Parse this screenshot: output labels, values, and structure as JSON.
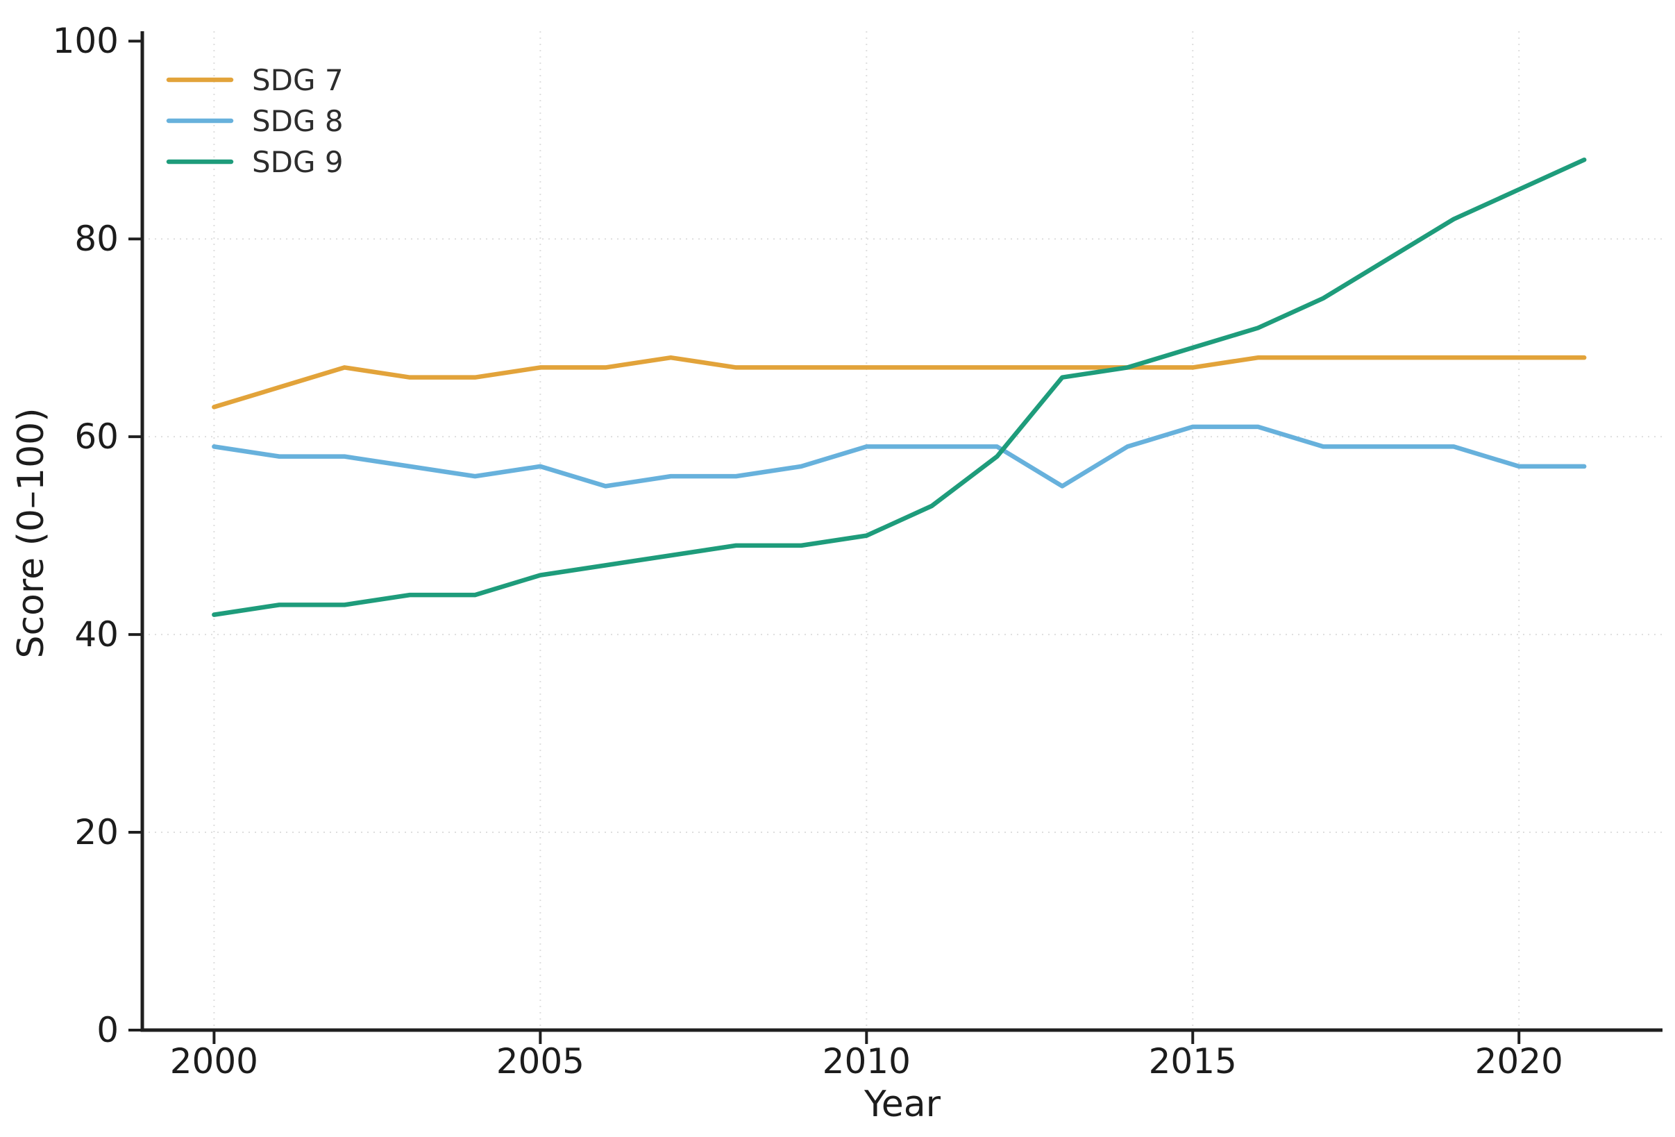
{
  "chart_data": {
    "type": "line",
    "title": "",
    "xlabel": "Year",
    "ylabel": "Score (0–100)",
    "x": [
      2000,
      2001,
      2002,
      2003,
      2004,
      2005,
      2006,
      2007,
      2008,
      2009,
      2010,
      2011,
      2012,
      2013,
      2014,
      2015,
      2016,
      2017,
      2018,
      2019,
      2020,
      2021
    ],
    "series": [
      {
        "name": "SDG 7",
        "color": "#e2a33a",
        "values": [
          63,
          65,
          67,
          66,
          66,
          67,
          67,
          68,
          67,
          67,
          67,
          67,
          67,
          67,
          67,
          67,
          68,
          68,
          68,
          68,
          68,
          68
        ]
      },
      {
        "name": "SDG 8",
        "color": "#67b1dc",
        "values": [
          59,
          58,
          58,
          57,
          56,
          57,
          55,
          56,
          56,
          57,
          59,
          59,
          59,
          55,
          59,
          61,
          61,
          59,
          59,
          59,
          57,
          57
        ]
      },
      {
        "name": "SDG 9",
        "color": "#1e9c7b",
        "values": [
          42,
          43,
          43,
          44,
          44,
          46,
          47,
          48,
          49,
          49,
          50,
          53,
          58,
          66,
          67,
          69,
          71,
          74,
          78,
          82,
          85,
          88
        ]
      }
    ],
    "xticks": [
      2000,
      2005,
      2010,
      2015,
      2020
    ],
    "yticks": [
      0,
      20,
      40,
      60,
      80,
      100
    ],
    "xlim": [
      1998.9,
      2022.2
    ],
    "ylim": [
      0,
      101
    ],
    "grid": true,
    "legend_position": "upper-left",
    "grid_color": "#d9d9d9",
    "axis_color": "#1f1f1f",
    "text_color": "#1c1c1c"
  }
}
